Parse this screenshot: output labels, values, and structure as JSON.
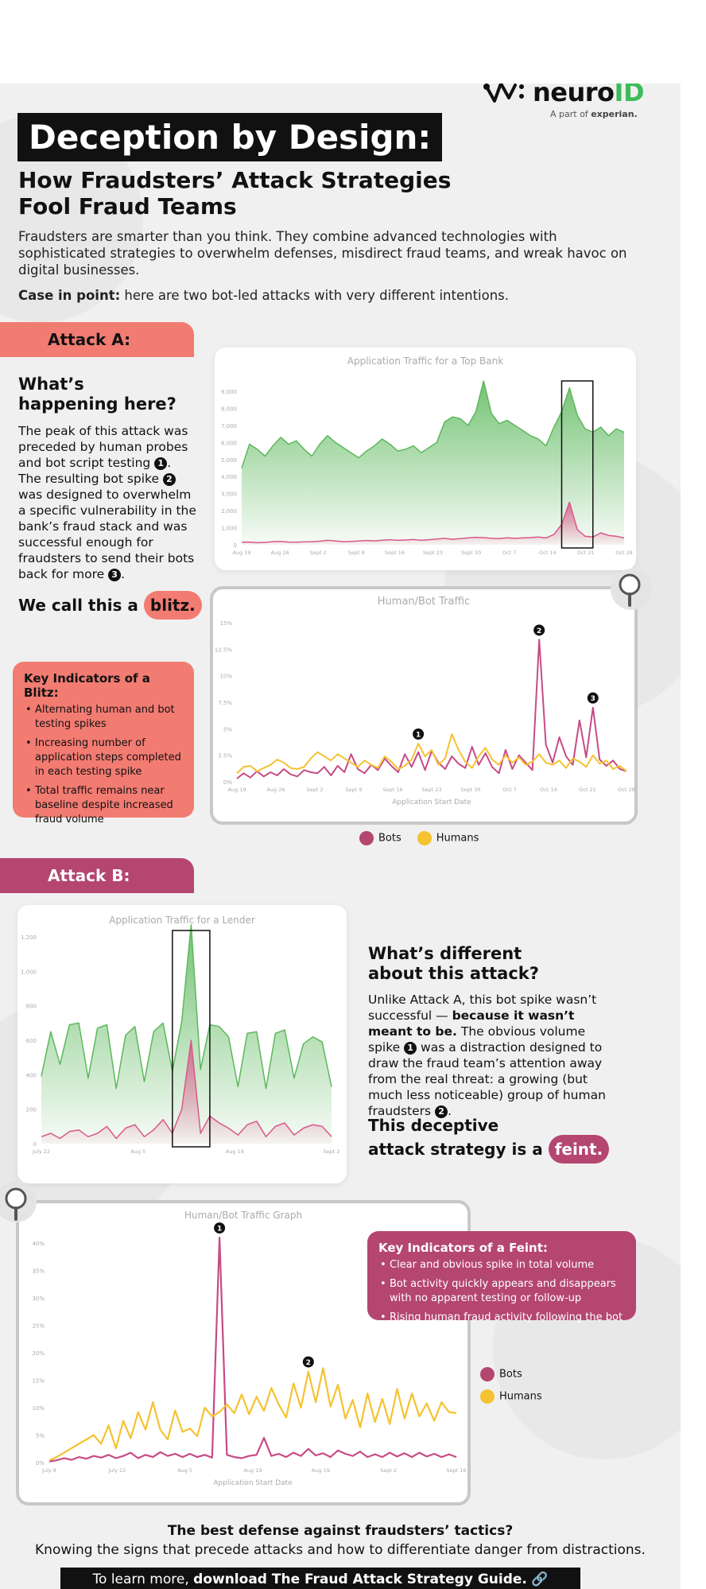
{
  "brand": {
    "logo_main": "neuro",
    "logo_id": "ID",
    "tagline_prefix": "A part of",
    "tagline_company": "experian.",
    "accent_green": "#3dbb5a"
  },
  "title": "Deception by Design:",
  "subtitle": "How Fraudsters’ Attack Strategies Fool Fraud Teams",
  "intro": "Fraudsters are smarter than you think. They combine advanced technologies with sophisticated strategies to overwhelm defenses, misdirect fraud teams, and wreak havoc on digital businesses.",
  "case_lead": "Case in point:",
  "case_rest": " here are two bot-led attacks with very different intentions.",
  "attack_a": {
    "tab": "Attack A:",
    "heading": "What’s happening here?",
    "text1": "The peak of this attack was preceded by human probes and bot script testing ",
    "text2": ". The resulting bot spike ",
    "text3": " was designed to overwhelm a specific vulnerability in the bank’s fraud stack and was successful enough for fraudsters to send their bots back for more ",
    "text4": ".",
    "call_prefix": "We call this a",
    "call_word": "blitz.",
    "key_title": "Key Indicators of a Blitz:",
    "key_items": [
      "Alternating human and bot testing spikes",
      "Increasing number of application steps completed in each testing spike",
      "Total traffic remains near baseline despite increased fraud volume"
    ],
    "color": "#f27b72"
  },
  "attack_b": {
    "tab": "Attack B:",
    "heading": "What’s different about this attack?",
    "text1": "Unlike Attack A, this bot spike wasn’t successful — ",
    "text_bold": "because it wasn’t meant to be.",
    "text2": " The obvious volume spike ",
    "text3": " was a distraction designed to draw the fraud team’s attention away from the real threat: a growing (but much less noticeable) group of human fraudsters ",
    "text4": ".",
    "call_line1": "This deceptive",
    "call_line2": "attack strategy is a",
    "call_word": "feint.",
    "key_title": "Key Indicators of a Feint:",
    "key_items": [
      "Clear and obvious spike in total volume",
      "Bot activity quickly appears and disappears with no apparent testing or follow-up",
      "Rising human fraud activity following the bot spike"
    ],
    "color": "#b4466f"
  },
  "markers": {
    "one": "1",
    "two": "2",
    "three": "3"
  },
  "legend": {
    "bots": "Bots",
    "humans": "Humans",
    "bots_color": "#b4466f",
    "humans_color": "#f5c230"
  },
  "footer": {
    "question": "The best defense against fraudsters’ tactics?",
    "answer": "Knowing the signs that precede attacks and how to differentiate danger from distractions.",
    "cta_prefix": "To learn more, ",
    "cta_bold": "download The Fraud Attack Strategy Guide.",
    "cta_icon": "🔗"
  },
  "chart_data": [
    {
      "type": "area",
      "title": "Application Traffic for a Top Bank",
      "ylim": [
        0,
        9000
      ],
      "yticks": [
        "0",
        "1,000",
        "2,000",
        "3,000",
        "4,000",
        "5,000",
        "6,000",
        "7,000",
        "8,000",
        "9,000"
      ],
      "xticks": [
        "Aug 19",
        "Aug 26",
        "Sept 2",
        "Sept 9",
        "Sept 16",
        "Sept 23",
        "Sept 30",
        "Oct 7",
        "Oct 14",
        "Oct 21",
        "Oct 28"
      ],
      "series": [
        {
          "name": "total",
          "values": [
            4500,
            5900,
            5600,
            5200,
            5800,
            6300,
            5900,
            6100,
            5600,
            5200,
            5900,
            6400,
            6000,
            5700,
            5400,
            5100,
            5500,
            5800,
            6200,
            5900,
            5500,
            5600,
            5800,
            5400,
            5700,
            6000,
            7200,
            7500,
            7400,
            7000,
            7800,
            9600,
            7700,
            7100,
            7300,
            7000,
            6700,
            6400,
            6200,
            5800,
            6900,
            7800,
            9200,
            7600,
            6800,
            6600,
            6900,
            6400,
            6800,
            6600
          ]
        },
        {
          "name": "bots",
          "values": [
            150,
            160,
            120,
            140,
            180,
            200,
            160,
            150,
            170,
            180,
            210,
            260,
            230,
            180,
            200,
            220,
            250,
            230,
            270,
            300,
            260,
            280,
            310,
            260,
            300,
            340,
            380,
            320,
            360,
            400,
            440,
            420,
            380,
            360,
            410,
            380,
            400,
            420,
            450,
            400,
            600,
            1200,
            2500,
            900,
            500,
            450,
            700,
            550,
            500,
            400
          ]
        }
      ]
    },
    {
      "type": "line",
      "title": "Human/Bot Traffic",
      "xlabel": "Application Start Date",
      "ylim": [
        0,
        15
      ],
      "yticks": [
        "0%",
        "2.5%",
        "5%",
        "7.5%",
        "10%",
        "12.5%",
        "15%"
      ],
      "xticks": [
        "Aug 19",
        "Aug 26",
        "Sept 2",
        "Sept 9",
        "Sept 16",
        "Sept 23",
        "Sept 30",
        "Oct 7",
        "Oct 14",
        "Oct 21",
        "Oct 28"
      ],
      "series": [
        {
          "name": "Bots",
          "values": [
            0.3,
            0.8,
            0.4,
            1.0,
            0.5,
            0.9,
            0.6,
            1.2,
            0.7,
            0.5,
            1.1,
            0.9,
            0.8,
            1.4,
            0.6,
            1.5,
            0.9,
            2.6,
            1.2,
            0.8,
            1.6,
            1.1,
            2.2,
            1.5,
            0.9,
            2.6,
            1.4,
            2.8,
            1.1,
            2.9,
            1.8,
            1.2,
            2.4,
            1.7,
            1.3,
            3.3,
            1.6,
            2.7,
            1.4,
            0.8,
            3.0,
            1.2,
            2.5,
            1.8,
            1.1,
            13.4,
            3.5,
            1.8,
            4.2,
            2.4,
            1.6,
            5.8,
            2.3,
            7.0,
            2.1,
            1.5,
            2.0,
            1.2,
            1.0
          ]
        },
        {
          "name": "Humans",
          "values": [
            0.8,
            1.4,
            1.5,
            1.0,
            1.3,
            1.6,
            2.1,
            1.8,
            1.3,
            1.2,
            1.4,
            2.2,
            2.8,
            2.4,
            2.0,
            2.6,
            2.2,
            1.8,
            1.4,
            2.0,
            1.6,
            1.3,
            2.4,
            1.9,
            1.2,
            1.5,
            2.1,
            3.6,
            2.4,
            3.0,
            1.6,
            2.2,
            4.5,
            3.0,
            1.9,
            1.3,
            2.4,
            3.2,
            2.1,
            1.6,
            2.5,
            1.8,
            2.3,
            1.6,
            1.9,
            2.6,
            1.8,
            1.6,
            2.0,
            1.3,
            2.2,
            1.9,
            1.4,
            2.5,
            1.7,
            2.0,
            1.2,
            1.5,
            1.0
          ]
        }
      ]
    },
    {
      "type": "area",
      "title": "Application Traffic for a Lender",
      "ylim": [
        0,
        1200
      ],
      "yticks": [
        "0",
        "200",
        "400",
        "600",
        "800",
        "1,000",
        "1,200"
      ],
      "xticks": [
        "July 22",
        "Aug 5",
        "Aug 19",
        "Sept 2"
      ],
      "series": [
        {
          "name": "total",
          "values": [
            390,
            650,
            460,
            690,
            700,
            380,
            670,
            690,
            320,
            630,
            680,
            360,
            650,
            700,
            420,
            710,
            1270,
            430,
            690,
            680,
            620,
            330,
            640,
            650,
            320,
            640,
            660,
            380,
            580,
            620,
            590,
            330
          ]
        },
        {
          "name": "bots",
          "values": [
            40,
            60,
            30,
            70,
            80,
            40,
            60,
            100,
            30,
            90,
            110,
            40,
            80,
            140,
            60,
            200,
            600,
            60,
            160,
            120,
            90,
            50,
            110,
            130,
            40,
            100,
            120,
            50,
            90,
            110,
            100,
            40
          ]
        }
      ]
    },
    {
      "type": "line",
      "title": "Human/Bot Traffic Graph",
      "xlabel": "Application Start Date",
      "ylim": [
        0,
        40
      ],
      "yticks": [
        "0%",
        "5%",
        "10%",
        "15%",
        "20%",
        "25%",
        "30%",
        "35%",
        "40%"
      ],
      "xticks": [
        "July 8",
        "July 22",
        "Aug 5",
        "Aug 19",
        "Aug 19",
        "Sept 2",
        "Sept 16"
      ],
      "series": [
        {
          "name": "Bots",
          "values": [
            0.2,
            0.4,
            0.8,
            0.5,
            1.0,
            0.7,
            1.2,
            0.9,
            1.4,
            0.8,
            1.2,
            1.8,
            0.8,
            1.4,
            1.0,
            1.9,
            1.2,
            1.6,
            1.0,
            1.6,
            1.0,
            1.4,
            0.9,
            41.0,
            1.4,
            1.0,
            0.8,
            1.2,
            1.4,
            4.5,
            1.2,
            1.6,
            1.0,
            1.8,
            1.2,
            2.5,
            1.3,
            1.7,
            1.0,
            2.2,
            1.6,
            1.2,
            2.0,
            1.0,
            1.5,
            1.0,
            1.8,
            1.1,
            1.7,
            1.0,
            1.8,
            1.1,
            1.6,
            1.0,
            1.5,
            1.0
          ]
        },
        {
          "name": "Humans",
          "values": [
            0.4,
            1.0,
            1.8,
            2.6,
            3.4,
            4.2,
            5.0,
            3.4,
            6.8,
            2.6,
            7.6,
            4.4,
            9.2,
            6.0,
            11.0,
            6.0,
            4.2,
            9.5,
            5.6,
            6.2,
            4.8,
            10.0,
            8.4,
            9.2,
            10.6,
            9.0,
            12.4,
            8.8,
            12.0,
            9.4,
            13.6,
            10.6,
            8.2,
            14.4,
            10.0,
            16.6,
            11.0,
            17.2,
            10.2,
            14.2,
            8.0,
            11.4,
            6.4,
            12.6,
            7.4,
            11.6,
            7.0,
            13.4,
            8.0,
            12.6,
            8.4,
            10.8,
            7.6,
            11.0,
            9.2,
            9.0
          ]
        }
      ]
    }
  ]
}
